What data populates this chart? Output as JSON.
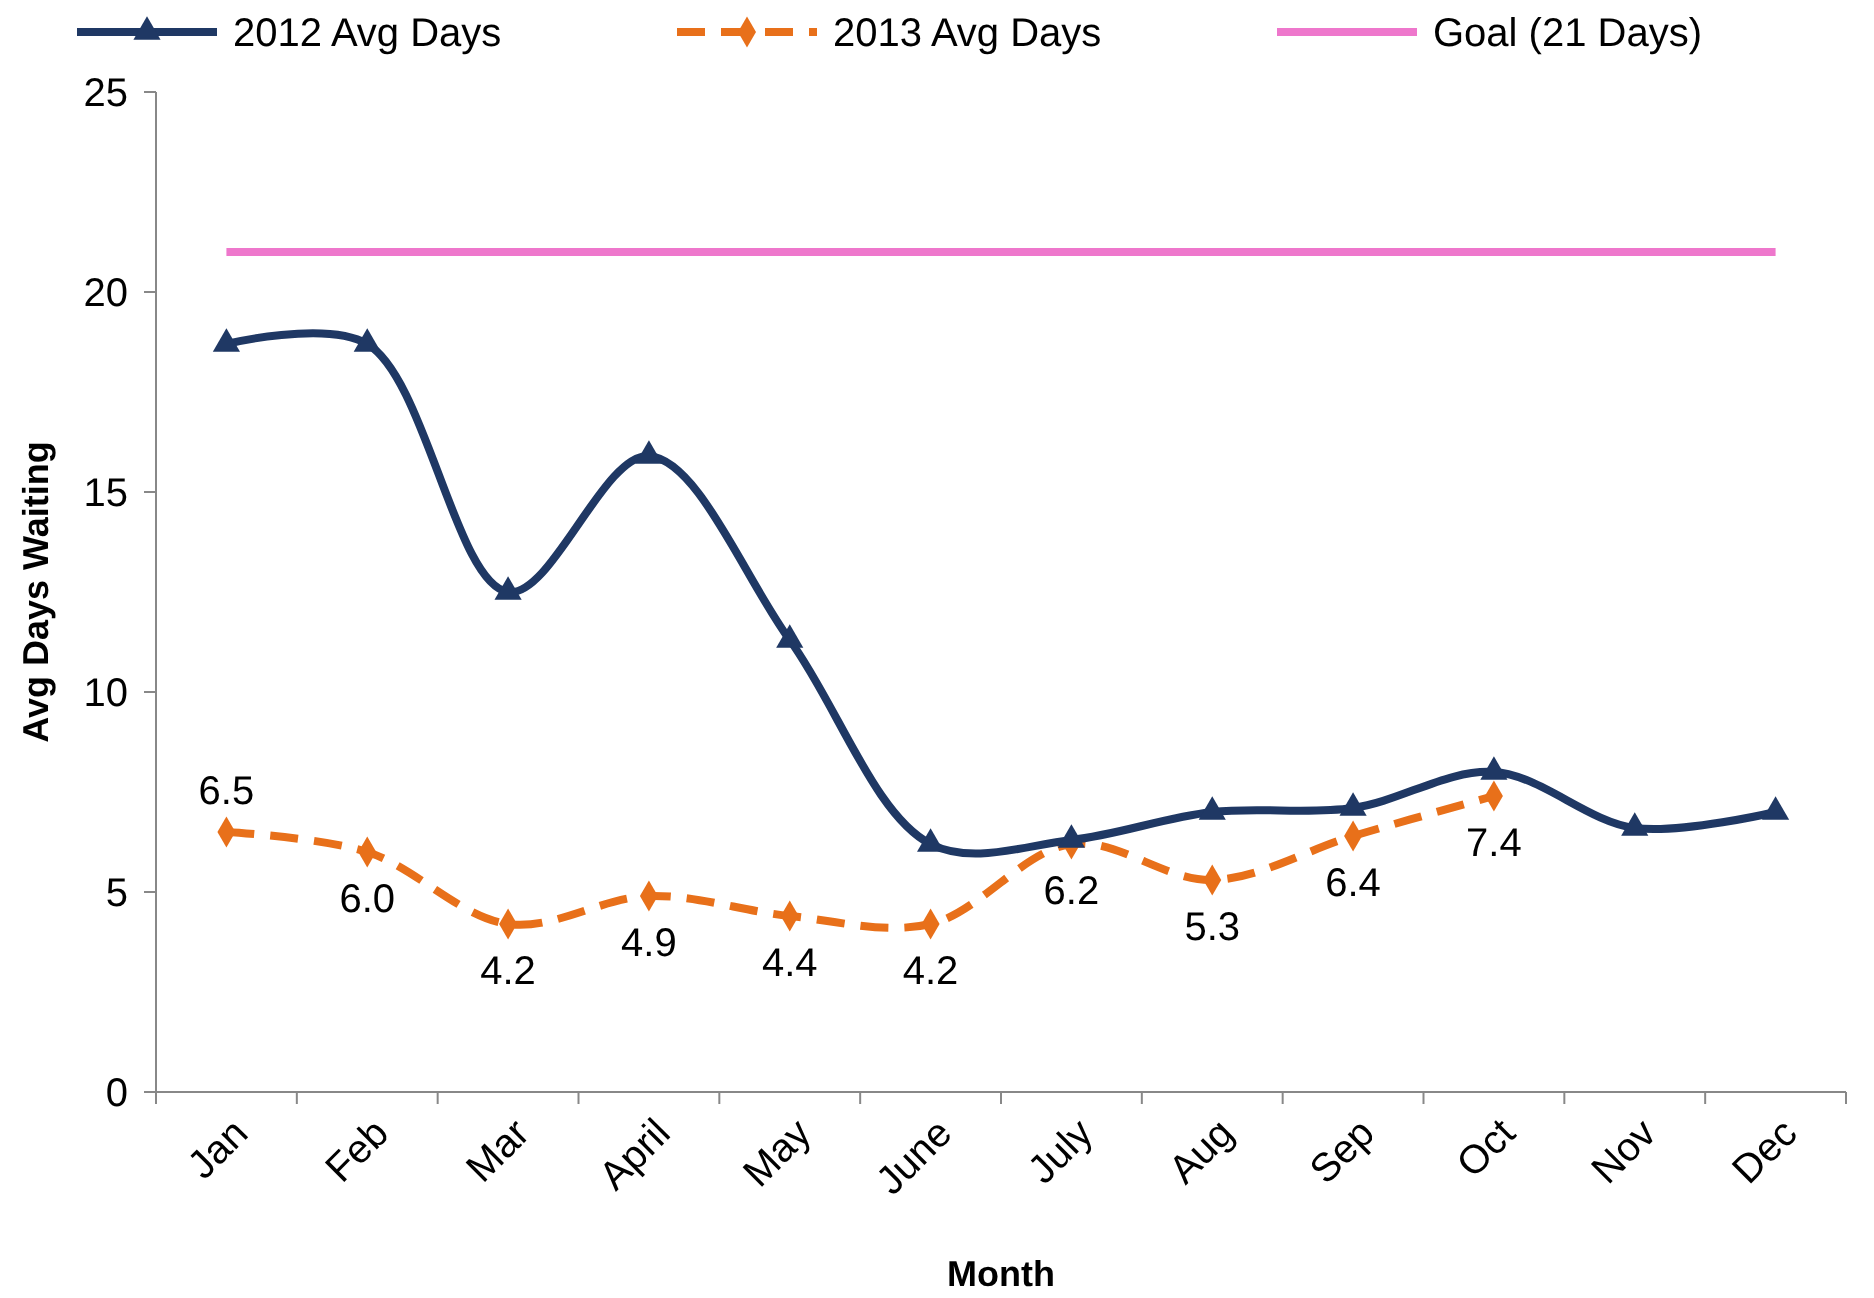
{
  "chart_data": {
    "type": "line",
    "xlabel": "Month",
    "ylabel": "Avg Days Waiting",
    "categories": [
      "Jan",
      "Feb",
      "Mar",
      "April",
      "May",
      "June",
      "July",
      "Aug",
      "Sep",
      "Oct",
      "Nov",
      "Dec"
    ],
    "ylim": [
      0,
      25
    ],
    "yticks": [
      0,
      5,
      10,
      15,
      20,
      25
    ],
    "grid": false,
    "legend": "top",
    "series": [
      {
        "name": "2012 Avg Days",
        "color": "#1f3864",
        "marker": "triangle",
        "line_style": "solid",
        "values": [
          18.7,
          18.7,
          12.5,
          15.9,
          11.3,
          6.2,
          6.3,
          7.0,
          7.1,
          8.0,
          6.6,
          7.0
        ]
      },
      {
        "name": "2013 Avg Days",
        "color": "#e8701a",
        "marker": "diamond",
        "line_style": "dashed",
        "values": [
          6.5,
          6.0,
          4.2,
          4.9,
          4.4,
          4.2,
          6.2,
          5.3,
          6.4,
          7.4,
          null,
          null
        ],
        "value_labels": [
          "6.5",
          "6.0",
          "4.2",
          "4.9",
          "4.4",
          "4.2",
          "6.2",
          "5.3",
          "6.4",
          "7.4",
          null,
          null
        ]
      },
      {
        "name": "Goal (21 Days)",
        "color": "#ee77cc",
        "marker": "none",
        "line_style": "solid",
        "values": [
          21,
          21,
          21,
          21,
          21,
          21,
          21,
          21,
          21,
          21,
          21,
          21
        ]
      }
    ]
  }
}
